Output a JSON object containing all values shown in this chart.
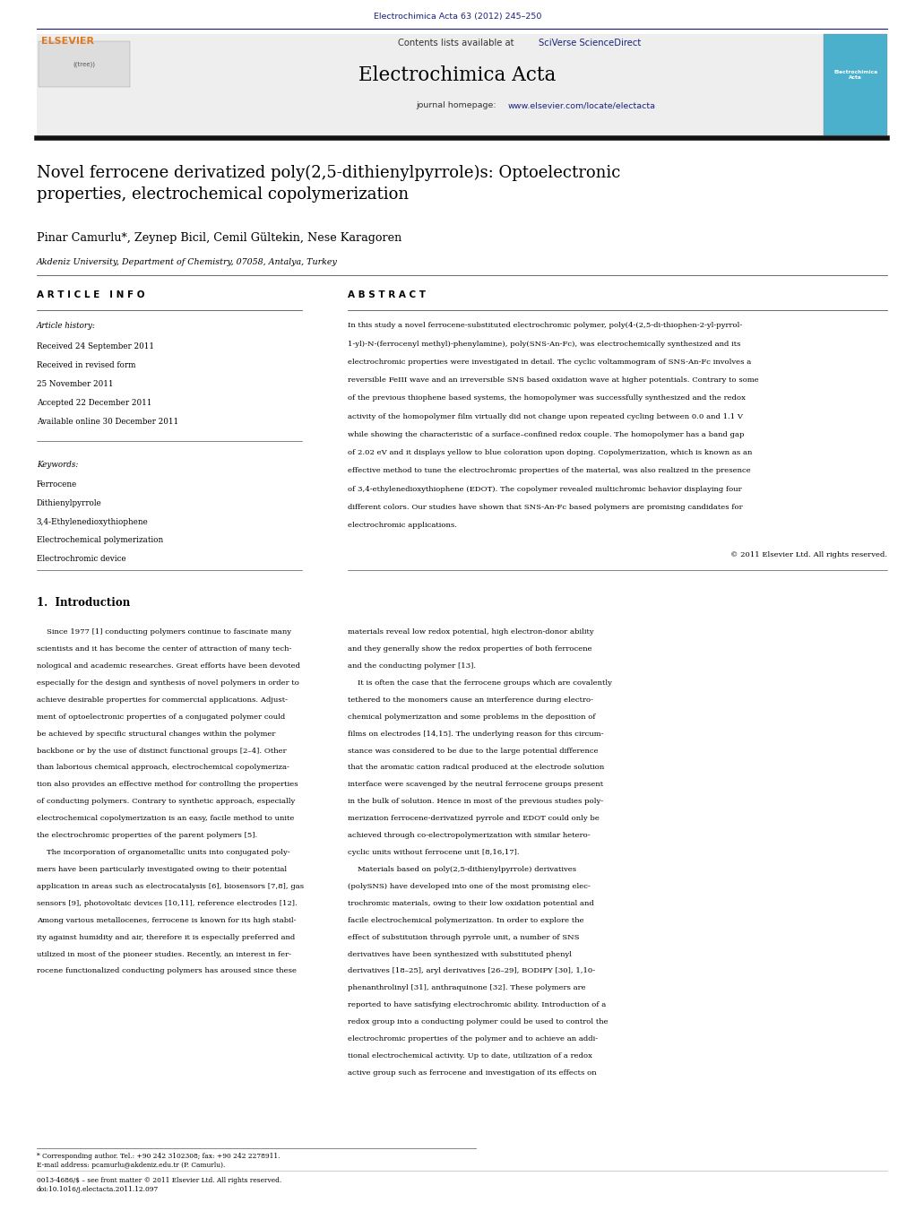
{
  "page_width": 10.21,
  "page_height": 13.51,
  "background_color": "#ffffff",
  "header_journal_ref": "Electrochimica Acta 63 (2012) 245–250",
  "header_journal_ref_color": "#1a237e",
  "journal_name": "Electrochimica Acta",
  "contents_line_plain": "Contents lists available at ",
  "contents_sciverse": "SciVerse ScienceDirect",
  "journal_homepage_plain": "journal homepage: ",
  "journal_homepage_url": "www.elsevier.com/locate/electacta",
  "header_bg_color": "#eeeeee",
  "article_title": "Novel ferrocene derivatized poly(2,5-dithienylpyrrole)s: Optoelectronic\nproperties, electrochemical copolymerization",
  "authors": "Pinar Camurlu*, Zeynep Bicil, Cemil Gültekin, Nese Karagoren",
  "affiliation": "Akdeniz University, Department of Chemistry, 07058, Antalya, Turkey",
  "article_info_title": "A R T I C L E   I N F O",
  "abstract_title": "A B S T R A C T",
  "article_history_label": "Article history:",
  "received_label": "Received 24 September 2011",
  "received_revised_label": "Received in revised form",
  "received_revised_date": "25 November 2011",
  "accepted_label": "Accepted 22 December 2011",
  "available_label": "Available online 30 December 2011",
  "keywords_label": "Keywords:",
  "keyword1": "Ferrocene",
  "keyword2": "Dithienylpyrrole",
  "keyword3": "3,4-Ethylenedioxythiophene",
  "keyword4": "Electrochemical polymerization",
  "keyword5": "Electrochromic device",
  "copyright_text": "© 2011 Elsevier Ltd. All rights reserved.",
  "section1_title": "1.  Introduction",
  "footnote_asterisk": "* Corresponding author. Tel.: +90 242 3102308; fax: +90 242 2278911.",
  "footnote_email": "E-mail address: pcamurlu@akdeniz.edu.tr (P. Camurlu).",
  "footnote_issn": "0013-4686/$ – see front matter © 2011 Elsevier Ltd. All rights reserved.",
  "footnote_doi": "doi:10.1016/j.electacta.2011.12.097",
  "link_color": "#1a237e",
  "text_color": "#000000",
  "gray_bg": "#eeeeee",
  "abstract_lines": [
    "In this study a novel ferrocene-substituted electrochromic polymer, poly(4-(2,5-di-thiophen-2-yl-pyrrol-",
    "1-yl)-N-(ferrocenyl methyl)-phenylamine), poly(SNS-An-Fc), was electrochemically synthesized and its",
    "electrochromic properties were investigated in detail. The cyclic voltammogram of SNS-An-Fc involves a",
    "reversible FeIII wave and an irreversible SNS based oxidation wave at higher potentials. Contrary to some",
    "of the previous thiophene based systems, the homopolymer was successfully synthesized and the redox",
    "activity of the homopolymer film virtually did not change upon repeated cycling between 0.0 and 1.1 V",
    "while showing the characteristic of a surface–confined redox couple. The homopolymer has a band gap",
    "of 2.02 eV and it displays yellow to blue coloration upon doping. Copolymerization, which is known as an",
    "effective method to tune the electrochromic properties of the material, was also realized in the presence",
    "of 3,4-ethylenedioxythiophene (EDOT). The copolymer revealed multichromic behavior displaying four",
    "different colors. Our studies have shown that SNS-An-Fc based polymers are promising candidates for",
    "electrochromic applications."
  ],
  "col1_lines": [
    "    Since 1977 [1] conducting polymers continue to fascinate many",
    "scientists and it has become the center of attraction of many tech-",
    "nological and academic researches. Great efforts have been devoted",
    "especially for the design and synthesis of novel polymers in order to",
    "achieve desirable properties for commercial applications. Adjust-",
    "ment of optoelectronic properties of a conjugated polymer could",
    "be achieved by specific structural changes within the polymer",
    "backbone or by the use of distinct functional groups [2–4]. Other",
    "than laborious chemical approach, electrochemical copolymeriza-",
    "tion also provides an effective method for controlling the properties",
    "of conducting polymers. Contrary to synthetic approach, especially",
    "electrochemical copolymerization is an easy, facile method to unite",
    "the electrochromic properties of the parent polymers [5].",
    "    The incorporation of organometallic units into conjugated poly-",
    "mers have been particularly investigated owing to their potential",
    "application in areas such as electrocatalysis [6], biosensors [7,8], gas",
    "sensors [9], photovoltaic devices [10,11], reference electrodes [12].",
    "Among various metallocenes, ferrocene is known for its high stabil-",
    "ity against humidity and air, therefore it is especially preferred and",
    "utilized in most of the pioneer studies. Recently, an interest in fer-",
    "rocene functionalized conducting polymers has aroused since these"
  ],
  "col2_lines": [
    "materials reveal low redox potential, high electron-donor ability",
    "and they generally show the redox properties of both ferrocene",
    "and the conducting polymer [13].",
    "    It is often the case that the ferrocene groups which are covalently",
    "tethered to the monomers cause an interference during electro-",
    "chemical polymerization and some problems in the deposition of",
    "films on electrodes [14,15]. The underlying reason for this circum-",
    "stance was considered to be due to the large potential difference",
    "that the aromatic cation radical produced at the electrode solution",
    "interface were scavenged by the neutral ferrocene groups present",
    "in the bulk of solution. Hence in most of the previous studies poly-",
    "merization ferrocene-derivatized pyrrole and EDOT could only be",
    "achieved through co-electropolymerization with similar hetero-",
    "cyclic units without ferrocene unit [8,16,17].",
    "    Materials based on poly(2,5-dithienylpyrrole) derivatives",
    "(polySNS) have developed into one of the most promising elec-",
    "trochromic materials, owing to their low oxidation potential and",
    "facile electrochemical polymerization. In order to explore the",
    "effect of substitution through pyrrole unit, a number of SNS",
    "derivatives have been synthesized with substituted phenyl",
    "derivatives [18–25], aryl derivatives [26–29], BODIPY [30], 1,10-",
    "phenanthrolinyl [31], anthraquinone [32]. These polymers are",
    "reported to have satisfying electrochromic ability. Introduction of a",
    "redox group into a conducting polymer could be used to control the",
    "electrochromic properties of the polymer and to achieve an addi-",
    "tional electrochemical activity. Up to date, utilization of a redox",
    "active group such as ferrocene and investigation of its effects on"
  ]
}
